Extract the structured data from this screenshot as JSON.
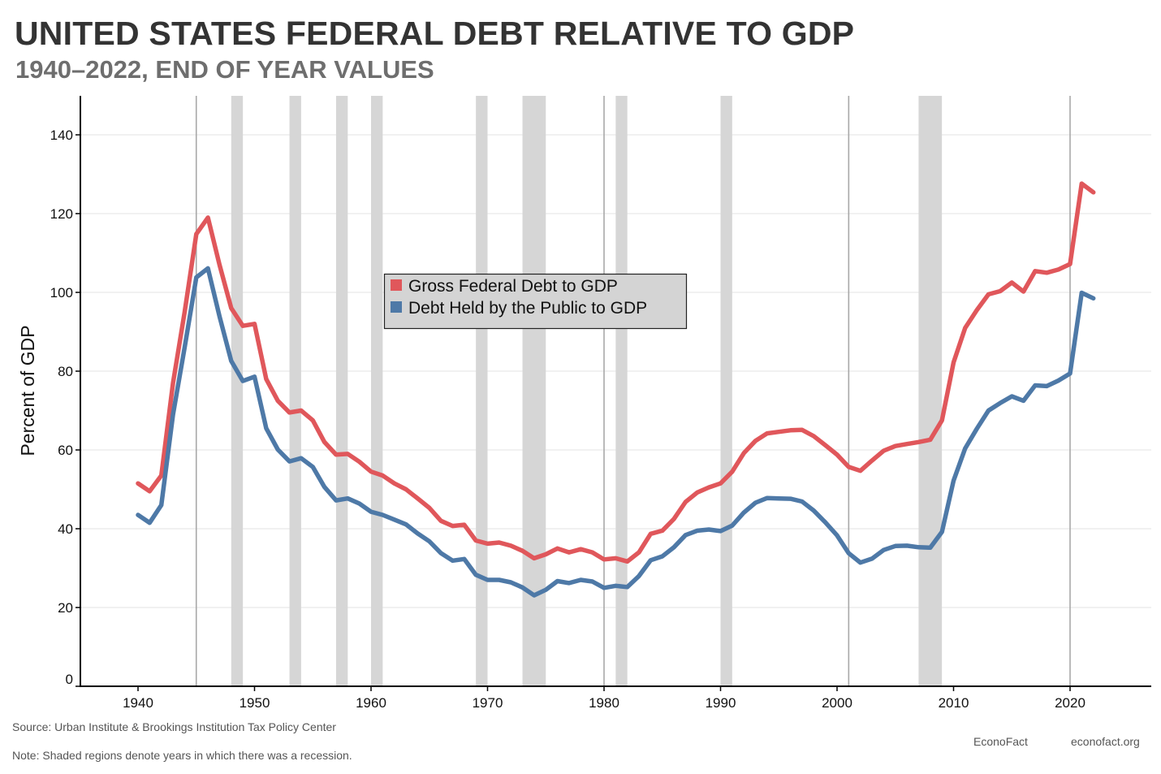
{
  "chart_data": {
    "type": "line",
    "title": "UNITED STATES FEDERAL DEBT RELATIVE TO GDP",
    "subtitle": "1940–2022, END OF YEAR VALUES",
    "ylabel": "Percent of GDP",
    "xlabel": "",
    "xlim": [
      1935,
      2027
    ],
    "ylim": [
      -1,
      150
    ],
    "xticks": [
      1940,
      1950,
      1960,
      1970,
      1980,
      1990,
      2000,
      2010,
      2020
    ],
    "yticks": [
      0,
      20,
      40,
      60,
      80,
      100,
      120,
      140
    ],
    "grid": true,
    "legend_position": "center",
    "x": [
      1940,
      1941,
      1942,
      1943,
      1944,
      1945,
      1946,
      1947,
      1948,
      1949,
      1950,
      1951,
      1952,
      1953,
      1954,
      1955,
      1956,
      1957,
      1958,
      1959,
      1960,
      1961,
      1962,
      1963,
      1964,
      1965,
      1966,
      1967,
      1968,
      1969,
      1970,
      1971,
      1972,
      1973,
      1974,
      1975,
      1976,
      1977,
      1978,
      1979,
      1980,
      1981,
      1982,
      1983,
      1984,
      1985,
      1986,
      1987,
      1988,
      1989,
      1990,
      1991,
      1992,
      1993,
      1994,
      1995,
      1996,
      1997,
      1998,
      1999,
      2000,
      2001,
      2002,
      2003,
      2004,
      2005,
      2006,
      2007,
      2008,
      2009,
      2010,
      2011,
      2012,
      2013,
      2014,
      2015,
      2016,
      2017,
      2018,
      2019,
      2020,
      2021,
      2022
    ],
    "series": [
      {
        "name": "Gross Federal Debt to GDP",
        "color": "#e0575b",
        "values": [
          51.5,
          49.5,
          53.5,
          77,
          95,
          114.8,
          119,
          107,
          96,
          91.5,
          92,
          78,
          72.5,
          69.5,
          70,
          67.5,
          62,
          58.8,
          59,
          57,
          54.5,
          53.5,
          51.5,
          50,
          47.7,
          45.3,
          42,
          40.7,
          41,
          37,
          36.2,
          36.5,
          35.7,
          34.4,
          32.5,
          33.5,
          35,
          34,
          34.8,
          34,
          32.2,
          32.5,
          31.7,
          34,
          38.7,
          39.5,
          42.5,
          46.8,
          49.2,
          50.5,
          51.5,
          54.5,
          59.2,
          62.3,
          64.2,
          64.6,
          65,
          65.1,
          63.5,
          61.2,
          58.8,
          55.7,
          54.7,
          57.3,
          59.8,
          61,
          61.5,
          62,
          62.6,
          67.5,
          82.2,
          91,
          95.5,
          99.5,
          100.3,
          102.5,
          100.2,
          105.4,
          105,
          105.8,
          107.2,
          127.6,
          125.4
        ]
      },
      {
        "name": "Debt Held by the Public to GDP",
        "color": "#4e79a7",
        "values": [
          43.5,
          41.5,
          46,
          69,
          86,
          103.8,
          106.1,
          93.9,
          82.6,
          77.5,
          78.6,
          65.5,
          60.1,
          57.1,
          57.9,
          55.7,
          50.6,
          47.2,
          47.7,
          46.4,
          44.3,
          43.5,
          42.3,
          41.1,
          38.8,
          36.8,
          33.8,
          31.9,
          32.3,
          28.3,
          27,
          27,
          26.4,
          25.1,
          23.1,
          24.5,
          26.7,
          26.2,
          27,
          26.6,
          25,
          25.5,
          25.2,
          28,
          32,
          33,
          35.3,
          38.4,
          39.5,
          39.8,
          39.4,
          40.8,
          44.1,
          46.6,
          47.8,
          47.7,
          47.6,
          46.9,
          44.6,
          41.6,
          38.3,
          33.8,
          31.4,
          32.4,
          34.6,
          35.6,
          35.7,
          35.3,
          35.2,
          39.2,
          52.2,
          60.4,
          65.4,
          70,
          71.9,
          73.6,
          72.5,
          76.4,
          76.2,
          77.6,
          79.4,
          99.9,
          98.5
        ]
      }
    ],
    "recessions": [
      [
        1945,
        1945
      ],
      [
        1948,
        1949
      ],
      [
        1953,
        1954
      ],
      [
        1957,
        1958
      ],
      [
        1960,
        1961
      ],
      [
        1969,
        1970
      ],
      [
        1973,
        1975
      ],
      [
        1980,
        1980
      ],
      [
        1981,
        1982
      ],
      [
        1990,
        1991
      ],
      [
        2001,
        2001
      ],
      [
        2007,
        2009
      ],
      [
        2020,
        2020
      ]
    ]
  },
  "footer": {
    "source": "Source: Urban Institute & Brookings Institution Tax Policy Center",
    "note": "Note: Shaded regions denote years in which there was a recession.",
    "brand": "EconoFact",
    "url": "econofact.org"
  }
}
